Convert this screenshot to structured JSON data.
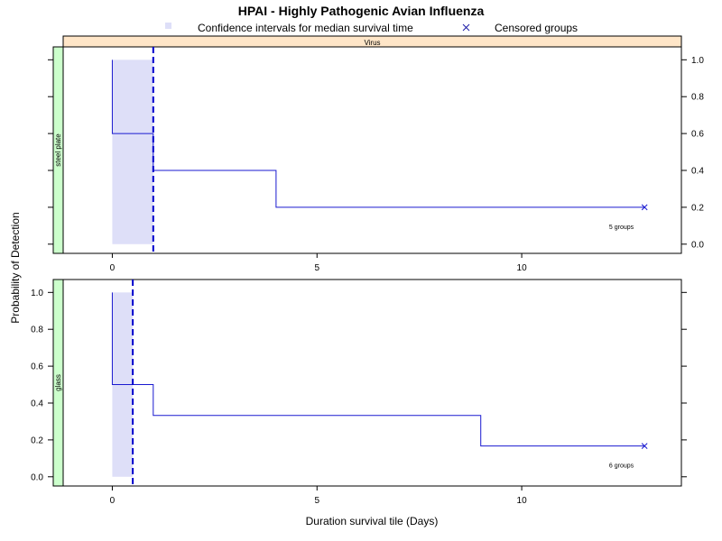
{
  "chart_data": {
    "type": "line",
    "title": "HPAI - Highly Pathogenic Avian Influenza",
    "xlabel": "Duration survival tile (Days)",
    "ylabel": "Probability of Detection",
    "xlim": [
      -1.2,
      13.9
    ],
    "ylim": [
      -0.05,
      1.07
    ],
    "x_ticks": [
      0,
      5,
      10
    ],
    "y_ticks": [
      0.0,
      0.2,
      0.4,
      0.6,
      0.8,
      1.0
    ],
    "y_tick_labels": [
      "0.0",
      "0.2",
      "0.4",
      "0.6",
      "0.8",
      "1.0"
    ],
    "x_tick_labels": [
      "0",
      "5",
      "10"
    ],
    "legend": {
      "placement": "top",
      "entries": [
        {
          "label": "Confidence intervals for median survival time",
          "symbol": "square",
          "color": "#dedff8"
        },
        {
          "label": "Censored groups",
          "symbol": "x",
          "color": "#1a1aa6"
        }
      ]
    },
    "outer_strip": "Virus",
    "colors": {
      "line": "#1a1ad0",
      "median": "#0000cc",
      "ci_fill": "#dedff8",
      "outer_strip_bg": "#ffe6c8",
      "inner_strip_bg": "#ccffcc"
    },
    "panels": [
      {
        "name": "steel plate",
        "steps": {
          "x": [
            0,
            1,
            1,
            4,
            4,
            13
          ],
          "y": [
            0.6,
            0.6,
            0.4,
            0.4,
            0.2,
            0.2
          ]
        },
        "initial_drop": {
          "x": 0,
          "from": 1.0,
          "to": 0.6
        },
        "ci": [
          0,
          1
        ],
        "median": 1,
        "censored": [
          {
            "x": 13,
            "y": 0.2
          }
        ],
        "group_label": "5 groups",
        "y_axis_side": "right"
      },
      {
        "name": "glass",
        "steps": {
          "x": [
            0,
            1,
            1,
            9,
            9,
            13
          ],
          "y": [
            0.5,
            0.5,
            0.333,
            0.333,
            0.167,
            0.167
          ]
        },
        "initial_drop": {
          "x": 0,
          "from": 1.0,
          "to": 0.5
        },
        "ci": [
          0,
          0.5
        ],
        "median": 0.5,
        "censored": [
          {
            "x": 13,
            "y": 0.167
          }
        ],
        "group_label": "6 groups",
        "y_axis_side": "left"
      }
    ]
  }
}
